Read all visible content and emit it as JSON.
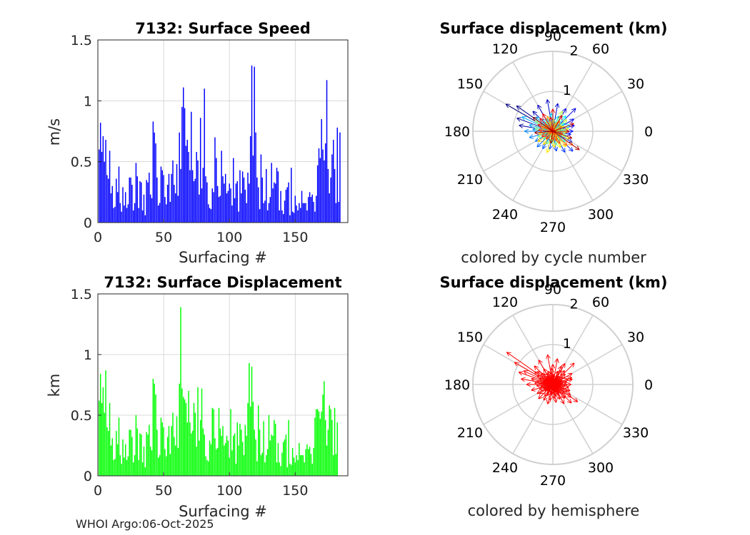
{
  "footer": "WHOI Argo:06-Oct-2025",
  "colors": {
    "speed_bars": "#0000ff",
    "disp_bars": "#00ff00",
    "hemisphere_arrows": "#ff0000",
    "grid": "#d8d8d8",
    "polar_grid": "#d0d0d0"
  },
  "chart_data": [
    {
      "type": "bar",
      "title": "7132: Surface Speed",
      "xlabel": "Surfacing #",
      "ylabel": "m/s",
      "xlim": [
        0,
        190
      ],
      "ylim": [
        0,
        1.5
      ],
      "xticks": [
        "0",
        "50",
        "100",
        "150"
      ],
      "yticks": [
        "0",
        "0.5",
        "1",
        "1.5"
      ],
      "grid": true,
      "values": [
        0.6,
        0.82,
        0.58,
        0.71,
        0.5,
        0.68,
        0.39,
        0.36,
        0.59,
        0.24,
        0.3,
        0.12,
        0.13,
        0.36,
        0.25,
        0.46,
        0.16,
        0.09,
        0.29,
        0.14,
        0.25,
        0.12,
        0.15,
        0.37,
        0.37,
        0.31,
        0.1,
        0.16,
        0.49,
        0.38,
        0.12,
        0.34,
        0.33,
        0.1,
        0.23,
        0.06,
        0.35,
        0.33,
        0.41,
        0.23,
        0.2,
        0.83,
        0.74,
        0.65,
        0.37,
        0.14,
        0.16,
        0.46,
        0.43,
        0.39,
        0.21,
        0.15,
        0.31,
        0.4,
        0.17,
        0.4,
        0.51,
        0.31,
        0.24,
        0.48,
        0.22,
        0.74,
        0.44,
        0.95,
        1.11,
        0.94,
        0.63,
        0.68,
        0.58,
        0.43,
        0.91,
        0.43,
        0.34,
        0.36,
        0.58,
        0.51,
        0.23,
        0.86,
        0.28,
        0.45,
        1.1,
        0.38,
        0.33,
        0.15,
        0.12,
        0.11,
        0.28,
        0.25,
        0.7,
        0.53,
        0.3,
        0.21,
        0.22,
        0.59,
        0.38,
        0.32,
        0.4,
        0.24,
        0.26,
        0.32,
        0.28,
        0.14,
        0.53,
        0.2,
        0.32,
        0.34,
        0.09,
        0.43,
        0.24,
        0.42,
        0.37,
        0.27,
        0.16,
        0.41,
        0.32,
        0.71,
        1.29,
        0.55,
        1.28,
        0.74,
        0.37,
        0.29,
        0.11,
        0.56,
        0.37,
        0.16,
        0.18,
        0.44,
        0.1,
        0.16,
        0.21,
        0.49,
        0.28,
        0.33,
        0.32,
        0.45,
        0.42,
        0.1,
        0.26,
        0.1,
        0.07,
        0.18,
        0.27,
        0.29,
        0.33,
        0.06,
        0.45,
        0.09,
        0.08,
        0.22,
        0.14,
        0.1,
        0.16,
        0.12,
        0.26,
        0.16,
        0.16,
        0.16,
        0.1,
        0.21,
        0.25,
        0.21,
        0.23,
        0.17,
        0.09,
        0.22,
        0.47,
        0.61,
        0.53,
        0.85,
        0.6,
        0.51,
        0.65,
        1.17,
        0.44,
        0.24,
        0.37,
        0.56,
        0.68,
        0.44,
        0.16,
        0.78,
        0.17,
        0.74
      ]
    },
    {
      "type": "bar",
      "title": "7132: Surface Displacement",
      "xlabel": "Surfacing #",
      "ylabel": "km",
      "xlim": [
        0,
        190
      ],
      "ylim": [
        0,
        1.5
      ],
      "xticks": [
        "0",
        "50",
        "100",
        "150"
      ],
      "yticks": [
        "0",
        "0.5",
        "1",
        "1.5"
      ],
      "grid": true,
      "values": [
        0.62,
        0.84,
        0.6,
        0.73,
        0.52,
        0.87,
        0.4,
        0.37,
        0.6,
        0.25,
        0.31,
        0.13,
        0.14,
        0.37,
        0.26,
        0.48,
        0.17,
        0.1,
        0.3,
        0.15,
        0.26,
        0.13,
        0.16,
        0.38,
        0.38,
        0.32,
        0.11,
        0.17,
        0.5,
        0.39,
        0.13,
        0.35,
        0.34,
        0.11,
        0.24,
        0.07,
        0.36,
        0.34,
        0.42,
        0.24,
        0.21,
        0.8,
        0.76,
        0.67,
        0.38,
        0.15,
        0.17,
        0.48,
        0.44,
        0.4,
        0.22,
        0.16,
        0.32,
        0.41,
        0.18,
        0.41,
        0.52,
        0.32,
        0.25,
        0.49,
        0.23,
        0.76,
        1.39,
        0.72,
        0.65,
        0.63,
        0.6,
        0.44,
        0.7,
        0.44,
        0.35,
        0.37,
        0.6,
        0.52,
        0.24,
        0.73,
        0.29,
        0.46,
        0.72,
        0.39,
        0.34,
        0.16,
        0.13,
        0.12,
        0.29,
        0.26,
        0.56,
        0.55,
        0.31,
        0.22,
        0.23,
        0.56,
        0.39,
        0.33,
        0.41,
        0.25,
        0.27,
        0.33,
        0.29,
        0.15,
        0.55,
        0.21,
        0.33,
        0.35,
        0.1,
        0.44,
        0.25,
        0.43,
        0.38,
        0.28,
        0.17,
        0.42,
        0.33,
        0.6,
        0.93,
        0.57,
        0.9,
        0.61,
        0.38,
        0.3,
        0.12,
        0.58,
        0.38,
        0.17,
        0.19,
        0.45,
        0.11,
        0.17,
        0.22,
        0.5,
        0.29,
        0.34,
        0.33,
        0.46,
        0.43,
        0.11,
        0.27,
        0.11,
        0.08,
        0.19,
        0.28,
        0.3,
        0.34,
        0.07,
        0.46,
        0.1,
        0.09,
        0.23,
        0.15,
        0.11,
        0.17,
        0.13,
        0.27,
        0.17,
        0.17,
        0.17,
        0.11,
        0.22,
        0.26,
        0.22,
        0.24,
        0.18,
        0.1,
        0.23,
        0.48,
        0.55,
        0.55,
        0.53,
        0.47,
        0.53,
        0.67,
        0.78,
        0.46,
        0.25,
        0.38,
        0.58,
        0.55,
        0.46,
        0.17,
        0.56,
        0.18,
        0.44
      ]
    },
    {
      "type": "polar-compass",
      "title": "Surface displacement (km)",
      "caption": "colored by cycle number",
      "coloring": "cycle",
      "rmax": 2,
      "rtick_labels": [
        "1",
        "2"
      ],
      "angle_labels": [
        "0",
        "30",
        "60",
        "90",
        "120",
        "150",
        "180",
        "210",
        "240",
        "270",
        "300",
        "330"
      ],
      "vectors": [
        [
          150,
          1.35
        ],
        [
          145,
          1.1
        ],
        [
          160,
          0.95
        ],
        [
          170,
          0.85
        ],
        [
          135,
          0.7
        ],
        [
          120,
          0.75
        ],
        [
          100,
          0.8
        ],
        [
          80,
          0.7
        ],
        [
          60,
          0.65
        ],
        [
          45,
          0.8
        ],
        [
          30,
          0.6
        ],
        [
          15,
          0.55
        ],
        [
          0,
          0.5
        ],
        [
          -10,
          0.45
        ],
        [
          -30,
          0.55
        ],
        [
          -45,
          0.7
        ],
        [
          -60,
          0.6
        ],
        [
          -80,
          0.5
        ],
        [
          -100,
          0.45
        ],
        [
          -120,
          0.5
        ],
        [
          -135,
          0.55
        ],
        [
          -150,
          0.5
        ],
        [
          -165,
          0.6
        ],
        [
          180,
          0.7
        ],
        [
          175,
          0.5
        ],
        [
          165,
          0.6
        ],
        [
          155,
          0.85
        ],
        [
          140,
          0.55
        ],
        [
          130,
          0.4
        ],
        [
          115,
          0.35
        ],
        [
          95,
          0.45
        ],
        [
          70,
          0.4
        ],
        [
          50,
          0.5
        ],
        [
          35,
          0.35
        ],
        [
          20,
          0.45
        ],
        [
          5,
          0.3
        ],
        [
          -20,
          0.35
        ],
        [
          -40,
          0.4
        ],
        [
          -55,
          0.3
        ],
        [
          -75,
          0.35
        ],
        [
          -95,
          0.3
        ],
        [
          -115,
          0.35
        ],
        [
          -140,
          0.3
        ],
        [
          -160,
          0.4
        ],
        [
          170,
          0.45
        ],
        [
          150,
          0.5
        ],
        [
          125,
          0.3
        ],
        [
          105,
          0.25
        ],
        [
          85,
          0.3
        ],
        [
          65,
          0.55
        ],
        [
          40,
          0.45
        ],
        [
          25,
          0.3
        ],
        [
          10,
          0.4
        ],
        [
          -5,
          0.35
        ],
        [
          -25,
          0.45
        ],
        [
          -50,
          0.5
        ],
        [
          -65,
          0.45
        ],
        [
          -85,
          0.4
        ],
        [
          -105,
          0.55
        ],
        [
          -125,
          0.4
        ],
        [
          -145,
          0.45
        ],
        [
          -170,
          0.35
        ],
        [
          160,
          0.3
        ],
        [
          140,
          0.25
        ],
        [
          110,
          0.4
        ],
        [
          75,
          0.2
        ],
        [
          55,
          0.3
        ],
        [
          30,
          0.25
        ],
        [
          -35,
          0.6
        ],
        [
          -45,
          0.5
        ],
        [
          -15,
          0.25
        ],
        [
          -60,
          0.35
        ],
        [
          -70,
          0.25
        ],
        [
          -90,
          0.2
        ],
        [
          -130,
          0.25
        ],
        [
          -155,
          0.3
        ],
        [
          175,
          0.35
        ],
        [
          155,
          0.4
        ],
        [
          135,
          0.45
        ],
        [
          120,
          0.5
        ],
        [
          100,
          0.35
        ],
        [
          90,
          0.55
        ],
        [
          60,
          0.45
        ],
        [
          20,
          0.55
        ],
        [
          0,
          0.4
        ],
        [
          -35,
          0.8
        ],
        [
          -20,
          0.5
        ],
        [
          -100,
          0.3
        ],
        [
          -175,
          0.45
        ],
        [
          145,
          0.6
        ]
      ]
    },
    {
      "type": "polar-compass",
      "title": "Surface displacement (km)",
      "caption": "colored by hemisphere",
      "coloring": "hemisphere",
      "rmax": 2,
      "rtick_labels": [
        "1",
        "2"
      ],
      "angle_labels": [
        "0",
        "30",
        "60",
        "90",
        "120",
        "150",
        "180",
        "210",
        "240",
        "270",
        "300",
        "330"
      ],
      "vectors": [
        [
          145,
          1.4
        ],
        [
          150,
          1.1
        ],
        [
          160,
          0.9
        ],
        [
          170,
          0.8
        ],
        [
          135,
          0.65
        ],
        [
          120,
          0.7
        ],
        [
          100,
          0.75
        ],
        [
          80,
          0.65
        ],
        [
          60,
          0.6
        ],
        [
          45,
          0.75
        ],
        [
          30,
          0.55
        ],
        [
          15,
          0.5
        ],
        [
          0,
          0.45
        ],
        [
          -10,
          0.4
        ],
        [
          -30,
          0.5
        ],
        [
          -45,
          0.65
        ],
        [
          -60,
          0.55
        ],
        [
          -80,
          0.45
        ],
        [
          -100,
          0.4
        ],
        [
          -120,
          0.45
        ],
        [
          -135,
          0.5
        ],
        [
          -150,
          0.45
        ],
        [
          -165,
          0.55
        ],
        [
          180,
          0.65
        ],
        [
          175,
          0.45
        ],
        [
          165,
          0.55
        ],
        [
          155,
          0.8
        ],
        [
          140,
          0.5
        ],
        [
          130,
          0.35
        ],
        [
          115,
          0.3
        ],
        [
          95,
          0.4
        ],
        [
          70,
          0.35
        ],
        [
          50,
          0.45
        ],
        [
          35,
          0.3
        ],
        [
          20,
          0.4
        ],
        [
          5,
          0.25
        ],
        [
          -20,
          0.3
        ],
        [
          -40,
          0.35
        ],
        [
          -55,
          0.25
        ],
        [
          -75,
          0.3
        ],
        [
          -95,
          0.25
        ],
        [
          -115,
          0.3
        ],
        [
          -140,
          0.25
        ],
        [
          -160,
          0.35
        ],
        [
          170,
          0.4
        ],
        [
          150,
          0.45
        ],
        [
          125,
          0.25
        ],
        [
          105,
          0.2
        ],
        [
          85,
          0.25
        ],
        [
          65,
          0.5
        ],
        [
          40,
          0.4
        ],
        [
          25,
          0.25
        ],
        [
          10,
          0.35
        ],
        [
          -5,
          0.3
        ],
        [
          -25,
          0.4
        ],
        [
          -50,
          0.45
        ],
        [
          -65,
          0.4
        ],
        [
          -85,
          0.35
        ],
        [
          -105,
          0.5
        ],
        [
          -125,
          0.35
        ],
        [
          -145,
          0.4
        ],
        [
          -170,
          0.3
        ],
        [
          160,
          0.25
        ],
        [
          140,
          0.2
        ],
        [
          110,
          0.35
        ],
        [
          75,
          0.15
        ],
        [
          55,
          0.25
        ],
        [
          30,
          0.2
        ],
        [
          -35,
          0.55
        ],
        [
          -45,
          0.45
        ],
        [
          -15,
          0.2
        ],
        [
          -60,
          0.3
        ],
        [
          -70,
          0.2
        ],
        [
          -90,
          0.15
        ],
        [
          -130,
          0.2
        ],
        [
          -155,
          0.25
        ],
        [
          175,
          0.3
        ],
        [
          155,
          0.35
        ],
        [
          135,
          0.4
        ],
        [
          120,
          0.45
        ],
        [
          100,
          0.3
        ],
        [
          90,
          0.5
        ],
        [
          60,
          0.4
        ],
        [
          20,
          0.5
        ],
        [
          0,
          0.35
        ],
        [
          -35,
          0.75
        ],
        [
          -20,
          0.45
        ],
        [
          -100,
          0.25
        ],
        [
          -175,
          0.4
        ],
        [
          145,
          0.55
        ]
      ]
    }
  ]
}
